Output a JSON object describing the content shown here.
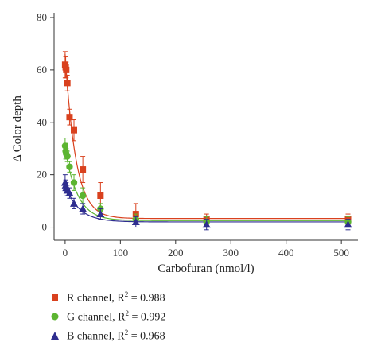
{
  "chart_data": {
    "type": "scatter",
    "xlabel": "Carbofuran (nmol/l)",
    "ylabel": "Δ Color depth",
    "xlim": [
      -20,
      530
    ],
    "ylim": [
      -5,
      80
    ],
    "xticks": [
      0,
      100,
      200,
      300,
      400,
      500
    ],
    "yticks": [
      0,
      20,
      40,
      60,
      80
    ],
    "grid": false,
    "legend_position": "bottom-left",
    "series": [
      {
        "name": "R channel, R^2 = 0.988",
        "label": "R channel, R",
        "r2": "= 0.988",
        "color": "#d9411e",
        "marker": "square",
        "x": [
          0,
          1,
          2,
          4,
          8,
          16,
          32,
          64,
          128,
          256,
          512
        ],
        "y": [
          62,
          61,
          60,
          55,
          42,
          37,
          22,
          12,
          5,
          3,
          3
        ],
        "err": [
          5,
          4,
          3,
          3,
          3,
          4,
          5,
          5,
          4,
          2,
          2
        ],
        "fit": {
          "bottom": 3.3,
          "top": 66,
          "k": 0.052
        }
      },
      {
        "name": "G channel, R^2 = 0.992",
        "label": "G channel, R",
        "r2": "= 0.992",
        "color": "#5cb531",
        "marker": "circle",
        "x": [
          0,
          1,
          2,
          4,
          8,
          16,
          32,
          64,
          128,
          256,
          512
        ],
        "y": [
          31,
          29,
          28,
          27,
          23,
          17,
          12,
          7,
          3,
          2,
          2
        ],
        "err": [
          3,
          3,
          2,
          2,
          2,
          3,
          3,
          2,
          2,
          2,
          2
        ],
        "fit": {
          "bottom": 2.5,
          "top": 30,
          "k": 0.045
        }
      },
      {
        "name": "B channel, R^2 = 0.968",
        "label": "B channel, R",
        "r2": "= 0.968",
        "color": "#2e2d8f",
        "marker": "triangle",
        "x": [
          0,
          1,
          2,
          4,
          8,
          16,
          32,
          64,
          128,
          256,
          512
        ],
        "y": [
          17,
          16,
          15,
          14,
          13,
          9,
          7,
          5,
          2,
          1,
          1
        ],
        "err": [
          3,
          2,
          2,
          2,
          2,
          2,
          2,
          2,
          2,
          2,
          2
        ],
        "fit": {
          "bottom": 2,
          "top": 16,
          "k": 0.04
        }
      }
    ]
  }
}
